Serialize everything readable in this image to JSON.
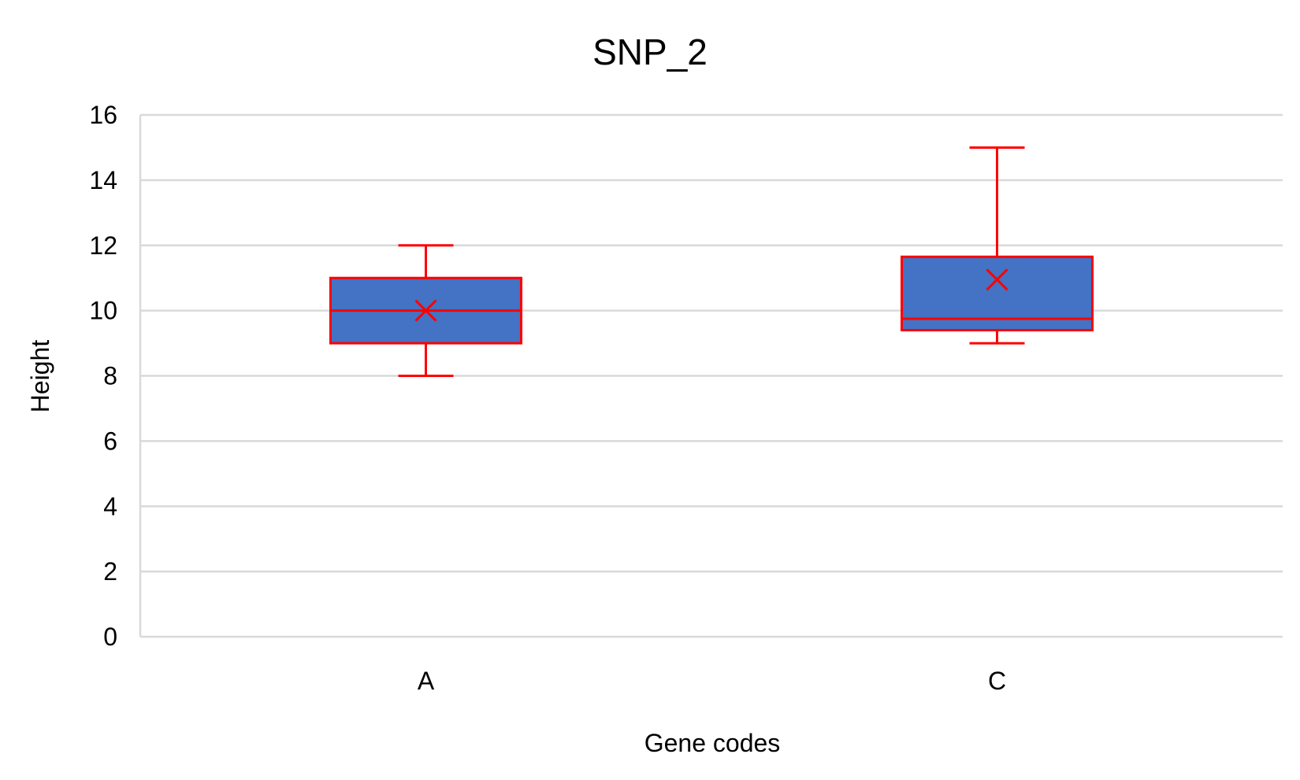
{
  "chart_data": {
    "type": "box",
    "title": "SNP_2",
    "xlabel": "Gene codes",
    "ylabel": "Height",
    "ylim": [
      0,
      16
    ],
    "yticks": [
      0,
      2,
      4,
      6,
      8,
      10,
      12,
      14,
      16
    ],
    "grid": true,
    "categories": [
      "A",
      "C"
    ],
    "boxes": [
      {
        "category": "A",
        "min": 8,
        "q1": 9,
        "median": 10,
        "q3": 11,
        "max": 12,
        "mean": 10
      },
      {
        "category": "C",
        "min": 9,
        "q1": 9.4,
        "median": 9.75,
        "q3": 11.65,
        "max": 15,
        "mean": 10.95
      }
    ],
    "colors": {
      "box_fill": "#4472C4",
      "box_stroke": "#FF0000",
      "grid": "#D9D9D9",
      "axis": "#D9D9D9"
    }
  }
}
